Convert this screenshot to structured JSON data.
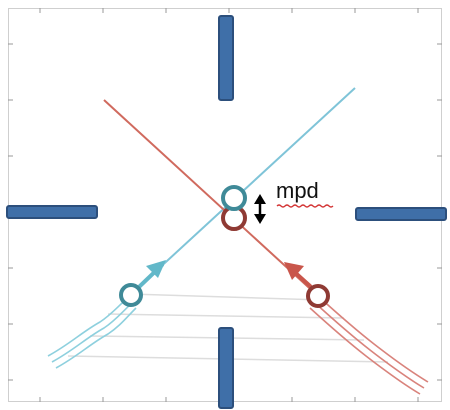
{
  "annotation": {
    "label": "mpd"
  },
  "colors": {
    "background": "#ffffff",
    "frame": "#cfcfcf",
    "tick": "#9a9a9a",
    "bar_fill": "#3f6fa8",
    "bar_stroke": "#2c4f7c",
    "teal": "#3f8a98",
    "teal_light": "#8ed0de",
    "red": "#8f3a34",
    "red_light": "#d9837c",
    "diagonal_blue": "#7fc4d8",
    "diagonal_red": "#d06a5e",
    "hatch": "#dddddd",
    "squiggle": "#d33333",
    "arrow_text": "#000000"
  },
  "icons": {
    "double_arrow": "vertical-double-arrow-icon",
    "teal_arrow": "teal-arrow-icon",
    "red_arrow": "red-arrow-icon"
  }
}
